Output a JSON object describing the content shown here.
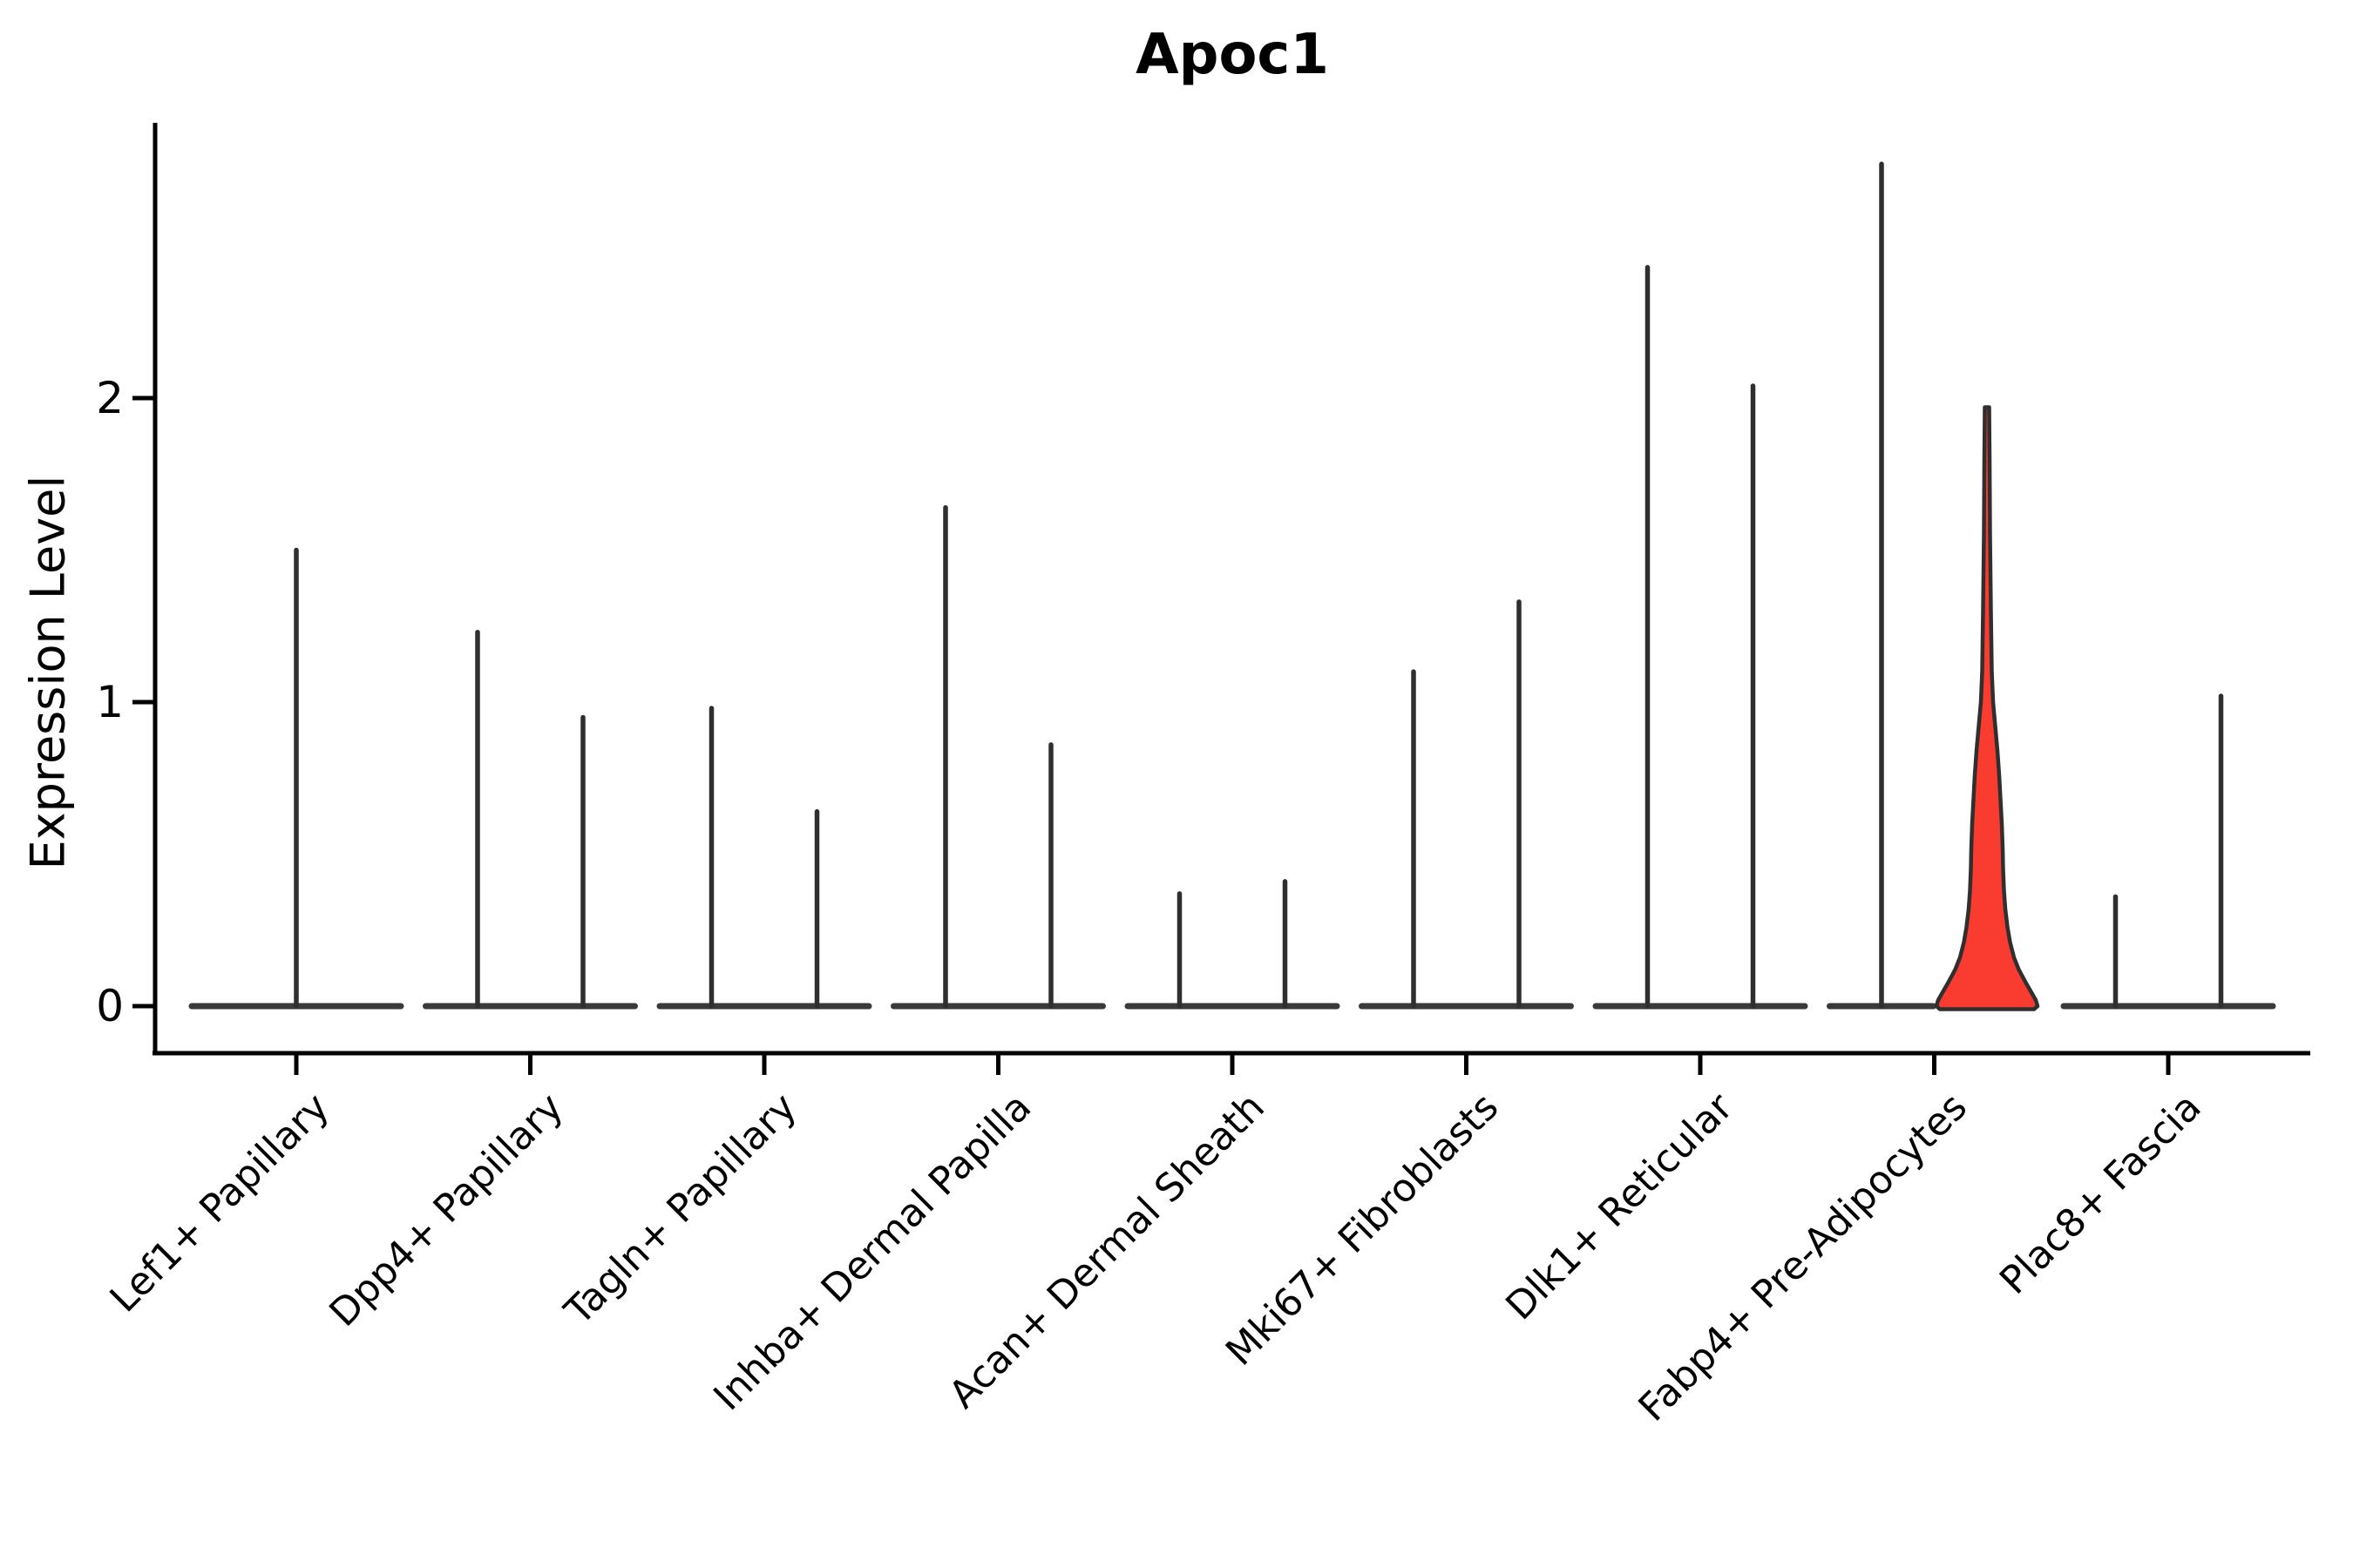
{
  "chart_data": {
    "type": "violin",
    "title": "Apoc1",
    "ylabel": "Expression Level",
    "ytick_labels": [
      "0",
      "1",
      "2"
    ],
    "ytick_values": [
      0,
      1,
      2
    ],
    "ylim": [
      -0.16,
      2.9
    ],
    "grid": false,
    "legend": "none",
    "categories": [
      "Lef1+ Papillary",
      "Dpp4+ Papillary",
      "Tagln+ Papillary",
      "Inhba+ Dermal Papilla",
      "Acan+ Dermal Sheath",
      "Mki67+ Fibroblasts",
      "Dlk1+ Reticular",
      "Fabp4+ Pre-Adipocytes",
      "Plac8+ Fascia"
    ],
    "series": [
      {
        "category": "Lef1+ Papillary",
        "violins": [
          {
            "slot": "center",
            "max_expression": 1.5,
            "filled": false
          }
        ]
      },
      {
        "category": "Dpp4+ Papillary",
        "violins": [
          {
            "slot": "left",
            "max_expression": 1.23,
            "filled": false
          },
          {
            "slot": "right",
            "max_expression": 0.95,
            "filled": false
          }
        ]
      },
      {
        "category": "Tagln+ Papillary",
        "violins": [
          {
            "slot": "left",
            "max_expression": 0.98,
            "filled": false
          },
          {
            "slot": "right",
            "max_expression": 0.64,
            "filled": false
          }
        ]
      },
      {
        "category": "Inhba+ Dermal Papilla",
        "violins": [
          {
            "slot": "left",
            "max_expression": 1.64,
            "filled": false
          },
          {
            "slot": "right",
            "max_expression": 0.86,
            "filled": false
          }
        ]
      },
      {
        "category": "Acan+ Dermal Sheath",
        "violins": [
          {
            "slot": "left",
            "max_expression": 0.37,
            "filled": false
          },
          {
            "slot": "right",
            "max_expression": 0.41,
            "filled": false
          }
        ]
      },
      {
        "category": "Mki67+ Fibroblasts",
        "violins": [
          {
            "slot": "left",
            "max_expression": 1.1,
            "filled": false
          },
          {
            "slot": "right",
            "max_expression": 1.33,
            "filled": false
          }
        ]
      },
      {
        "category": "Dlk1+ Reticular",
        "violins": [
          {
            "slot": "left",
            "max_expression": 2.43,
            "filled": false
          },
          {
            "slot": "right",
            "max_expression": 2.04,
            "filled": false
          }
        ]
      },
      {
        "category": "Fabp4+ Pre-Adipocytes",
        "violins": [
          {
            "slot": "left",
            "max_expression": 2.77,
            "filled": false
          },
          {
            "slot": "right",
            "max_expression": 1.97,
            "filled": true
          }
        ]
      },
      {
        "category": "Plac8+ Fascia",
        "violins": [
          {
            "slot": "left",
            "max_expression": 0.36,
            "filled": false
          },
          {
            "slot": "right",
            "max_expression": 1.02,
            "filled": false
          }
        ]
      }
    ],
    "highlight_violin": {
      "category": "Fabp4+ Pre-Adipocytes",
      "slot": "right",
      "max_expression": 1.97,
      "density_profile_value_halfwidth": [
        [
          1.97,
          2.5
        ],
        [
          1.8,
          3.0
        ],
        [
          1.55,
          3.5
        ],
        [
          1.3,
          4.5
        ],
        [
          1.1,
          5.5
        ],
        [
          1.0,
          7.0
        ],
        [
          0.92,
          9.5
        ],
        [
          0.84,
          12.0
        ],
        [
          0.76,
          14.0
        ],
        [
          0.68,
          15.5
        ],
        [
          0.6,
          17.0
        ],
        [
          0.52,
          18.0
        ],
        [
          0.45,
          18.5
        ],
        [
          0.38,
          19.5
        ],
        [
          0.32,
          21.0
        ],
        [
          0.26,
          23.5
        ],
        [
          0.21,
          26.5
        ],
        [
          0.16,
          31.0
        ],
        [
          0.12,
          36.5
        ],
        [
          0.08,
          44.0
        ],
        [
          0.05,
          50.0
        ],
        [
          0.02,
          56.0
        ],
        [
          0.0,
          58.0
        ]
      ]
    },
    "colors": {
      "highlight_fill": "#f93b30",
      "violin_edge": "#2f2f2f",
      "flat_base": "#3a3a3a",
      "axis": "#000000",
      "background": "#ffffff"
    }
  }
}
